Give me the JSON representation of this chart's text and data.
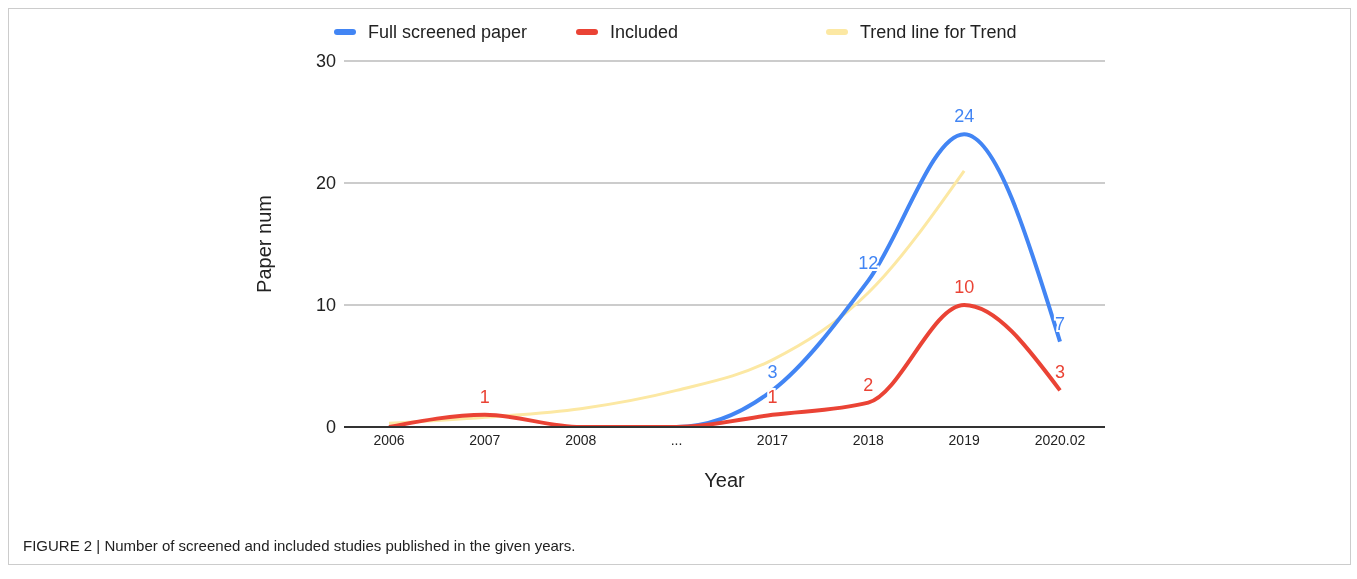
{
  "chart_data": {
    "type": "line",
    "xlabel": "Year",
    "ylabel": "Paper num",
    "categories": [
      "2006",
      "2007",
      "2008",
      "...",
      "2017",
      "2018",
      "2019",
      "2020.02"
    ],
    "series": [
      {
        "name": "Full screened paper",
        "color": "#4285f4",
        "values": [
          null,
          null,
          0,
          0,
          3,
          12,
          24,
          7
        ],
        "value_labels": [
          null,
          null,
          null,
          null,
          "3",
          "12",
          "24",
          "7"
        ]
      },
      {
        "name": "Included",
        "color": "#ea4335",
        "values": [
          0,
          1,
          0,
          0,
          1,
          2,
          10,
          3
        ],
        "value_labels": [
          null,
          "1",
          null,
          null,
          "1",
          "2",
          "10",
          "3"
        ]
      },
      {
        "name": "Trend line for Trend",
        "color": "#fce8a3",
        "values": [
          0.3,
          0.8,
          1.5,
          3,
          5.5,
          11,
          21,
          null
        ]
      }
    ],
    "ylim": [
      0,
      30
    ],
    "yticks": [
      0,
      10,
      20,
      30
    ],
    "grid": "y",
    "legend": "top",
    "marker": "none",
    "line_style": "solid",
    "annotations": [
      "FIGURE 2 | Number of screened and included studies published in the given years."
    ]
  }
}
